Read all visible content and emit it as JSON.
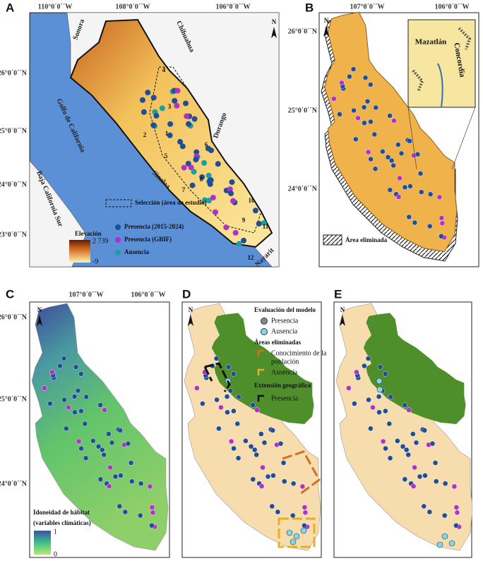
{
  "panels": [
    {
      "letter": "A",
      "north": "N",
      "lon_labels": [
        "110°0´0´´W",
        "108°0´0´´W",
        "106°0´0´´W"
      ],
      "lat_labels": [
        "26°0´0´´N",
        "25°0´0´´N",
        "24°0´0´´N",
        "23°0´0´´N"
      ],
      "places": [
        "Sonora",
        "Chihuahua",
        "Durango",
        "Golfo de California",
        "Baja California Sur",
        "Sinaloa",
        "Nayarit"
      ],
      "regions": [
        "1",
        "2",
        "3",
        "4",
        "5",
        "6",
        "7",
        "8",
        "9",
        "10",
        "11",
        "12"
      ],
      "legend": {
        "selection": "Selección (área de estudio)",
        "elevation_title": "Elevación",
        "elevation_max": "2 739",
        "elevation_min": "-9",
        "presence": "Presencia (2015-2024)",
        "gbif": "Presencia (GBIF)",
        "absence": "Ausencia"
      }
    },
    {
      "letter": "B",
      "north": "N",
      "lon_labels": [
        "107°0´0´´W",
        "106°0´0´´W"
      ],
      "lat_labels": [
        "26°0´0´´N",
        "25°0´0´´N",
        "24°0´0´´N"
      ],
      "inset_labels": [
        "Mazatlán",
        "Concordia"
      ],
      "legend": "Área eliminada"
    },
    {
      "letter": "C",
      "north": "N",
      "lon_labels": [
        "107°0´0´´W",
        "106°0´0´´W"
      ],
      "lat_labels": [
        "26°0´0´´N",
        "25°0´0´´N",
        "24°0´0´´N"
      ],
      "legend": {
        "title": "Idoneidad de hábitat",
        "subtitle": "(variables climáticas)",
        "max": "1",
        "min": "0"
      }
    },
    {
      "letter": "D",
      "north": "N",
      "legend": {
        "evaluation": "Evaluación del modelo",
        "presence": "Presencia",
        "absence": "Ausencia",
        "removed": "Áreas eliminadas",
        "knowledge": "Conocimiento de la",
        "knowledge2": "población",
        "removed_absence": "Ausencia",
        "extent": "Extensión geográfica",
        "extent_presence": "Presencia"
      }
    },
    {
      "letter": "E",
      "north": "N"
    }
  ]
}
